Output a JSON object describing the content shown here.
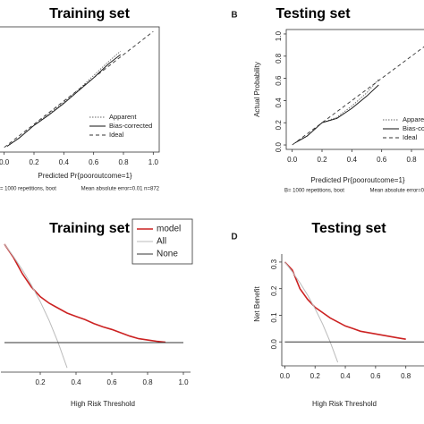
{
  "chart_data": [
    {
      "type": "calibration",
      "title": "Training set",
      "x_label": "Predicted Pr{pooroutcome=1}",
      "notes": [
        "= 1000 repetitions, boot",
        "Mean absolute error=0.01 n=872"
      ],
      "xlim": [
        -0.04,
        1.04
      ],
      "ylim": [
        -0.04,
        1.04
      ],
      "xticks": [
        {
          "value": 0,
          "label": "0.0"
        },
        0.2,
        0.4,
        0.6,
        0.8,
        {
          "value": 1,
          "label": "1.0"
        }
      ],
      "series": [
        {
          "name": "Apparent",
          "color": "#666666",
          "style": "dotted",
          "x": [
            0.02,
            0.1,
            0.2,
            0.3,
            0.4,
            0.5,
            0.6,
            0.7,
            0.78
          ],
          "values": [
            0.01,
            0.08,
            0.19,
            0.29,
            0.39,
            0.5,
            0.62,
            0.74,
            0.83
          ]
        },
        {
          "name": "Bias-corrected",
          "color": "#111111",
          "style": "solid",
          "x": [
            0.02,
            0.1,
            0.2,
            0.3,
            0.4,
            0.5,
            0.6,
            0.7,
            0.78
          ],
          "values": [
            0.01,
            0.08,
            0.19,
            0.28,
            0.38,
            0.49,
            0.6,
            0.72,
            0.8
          ]
        },
        {
          "name": "Ideal",
          "color": "#333333",
          "style": "dashed",
          "x": [
            0,
            1
          ],
          "values": [
            0,
            1
          ]
        }
      ]
    },
    {
      "type": "calibration",
      "panel_label": "B",
      "title": "Testing set",
      "x_label": "Predicted Pr{pooroutcome=1}",
      "y_label": "Actual Probability",
      "notes": [
        "B= 1000 repetitions, boot",
        "Mean absolute error=0"
      ],
      "xlim": [
        -0.04,
        1.04
      ],
      "ylim": [
        -0.04,
        1.04
      ],
      "xticks": [
        {
          "value": 0,
          "label": "0.0"
        },
        0.2,
        0.4,
        0.6,
        0.8
      ],
      "yticks": [
        {
          "value": 0,
          "label": "0.0"
        },
        0.2,
        0.4,
        0.6,
        0.8,
        {
          "value": 1,
          "label": "1.0"
        }
      ],
      "series": [
        {
          "name": "Apparent",
          "color": "#666666",
          "style": "dotted",
          "x": [
            0.02,
            0.06,
            0.1,
            0.15,
            0.2,
            0.3,
            0.4,
            0.5,
            0.58
          ],
          "values": [
            0.02,
            0.05,
            0.08,
            0.14,
            0.2,
            0.25,
            0.35,
            0.47,
            0.59
          ]
        },
        {
          "name": "Bias-corrected",
          "color": "#111111",
          "style": "solid",
          "x": [
            0.02,
            0.06,
            0.1,
            0.15,
            0.2,
            0.3,
            0.4,
            0.5,
            0.58
          ],
          "values": [
            0.02,
            0.05,
            0.08,
            0.14,
            0.2,
            0.24,
            0.33,
            0.44,
            0.54
          ]
        },
        {
          "name": "Ideal",
          "color": "#333333",
          "style": "dashed",
          "x": [
            0,
            1
          ],
          "values": [
            0,
            1
          ]
        }
      ]
    },
    {
      "type": "decision",
      "title": "Training set",
      "x_label": "High Risk Threshold",
      "xlim": [
        -0.02,
        1.04
      ],
      "ylim": [
        -0.09,
        0.33
      ],
      "xticks": [
        0.2,
        0.4,
        0.6,
        0.8,
        {
          "value": 1,
          "label": "1.0"
        }
      ],
      "series": [
        {
          "name": "model",
          "color": "#cc2222",
          "x": [
            0,
            0.05,
            0.1,
            0.15,
            0.2,
            0.25,
            0.3,
            0.35,
            0.4,
            0.45,
            0.5,
            0.55,
            0.6,
            0.65,
            0.7,
            0.75,
            0.8,
            0.85,
            0.9
          ],
          "values": [
            0.3,
            0.26,
            0.21,
            0.17,
            0.14,
            0.12,
            0.105,
            0.09,
            0.08,
            0.07,
            0.058,
            0.048,
            0.04,
            0.03,
            0.02,
            0.012,
            0.008,
            0.004,
            0.001
          ]
        },
        {
          "name": "All",
          "color": "#bbbbbb",
          "x": [
            0,
            0.05,
            0.1,
            0.15,
            0.2,
            0.25,
            0.3,
            0.35
          ],
          "values": [
            0.3,
            0.263,
            0.222,
            0.176,
            0.125,
            0.067,
            0,
            -0.077
          ]
        },
        {
          "name": "None",
          "color": "#333333",
          "x": [
            0,
            1
          ],
          "values": [
            0,
            0
          ]
        }
      ]
    },
    {
      "type": "decision",
      "panel_label": "D",
      "title": "Testing set",
      "x_label": "High Risk Threshold",
      "y_label": "Net Benefit",
      "xlim": [
        -0.02,
        0.92
      ],
      "ylim": [
        -0.09,
        0.33
      ],
      "xticks": [
        {
          "value": 0,
          "label": "0.0"
        },
        0.2,
        0.4,
        0.6,
        0.8
      ],
      "yticks": [
        {
          "value": 0,
          "label": "0.0"
        },
        0.1,
        0.2,
        0.3
      ],
      "series": [
        {
          "color": "#cc2222",
          "x": [
            0,
            0.05,
            0.1,
            0.15,
            0.2,
            0.25,
            0.3,
            0.35,
            0.4,
            0.45,
            0.5,
            0.55,
            0.6,
            0.65,
            0.7,
            0.75,
            0.8
          ],
          "values": [
            0.3,
            0.27,
            0.2,
            0.16,
            0.13,
            0.11,
            0.09,
            0.075,
            0.06,
            0.05,
            0.04,
            0.035,
            0.03,
            0.025,
            0.02,
            0.015,
            0.01
          ]
        },
        {
          "color": "#bbbbbb",
          "x": [
            0,
            0.05,
            0.1,
            0.15,
            0.2,
            0.25,
            0.3,
            0.35
          ],
          "values": [
            0.3,
            0.263,
            0.222,
            0.176,
            0.125,
            0.067,
            0,
            -0.077
          ]
        },
        {
          "color": "#333333",
          "x": [
            0,
            1
          ],
          "values": [
            0,
            0
          ]
        }
      ]
    }
  ]
}
